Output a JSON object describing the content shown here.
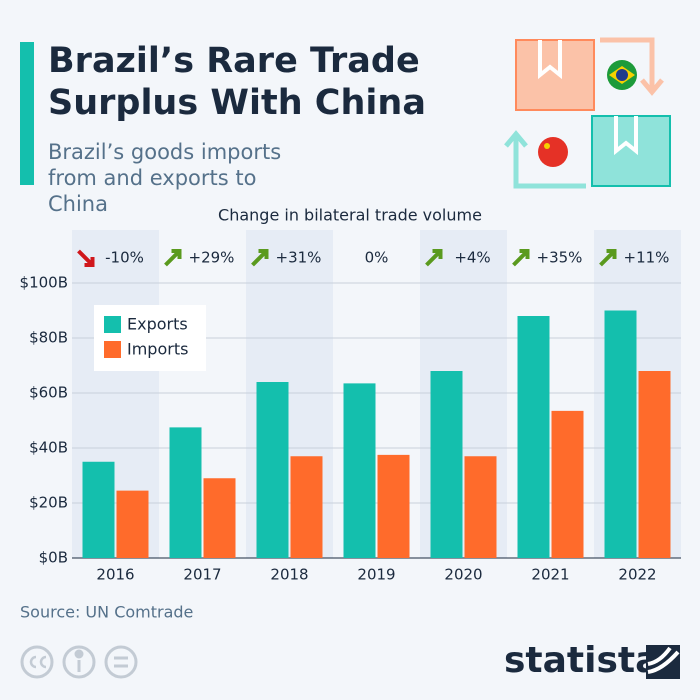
{
  "chart_data": {
    "type": "bar",
    "title": "Brazil’s Rare Trade Surplus With China",
    "subtitle": "Brazil’s goods imports from and exports to China",
    "categories": [
      "2016",
      "2017",
      "2018",
      "2019",
      "2020",
      "2021",
      "2022"
    ],
    "series": [
      {
        "name": "Exports",
        "color": "#14bfad",
        "values": [
          35,
          47.5,
          64,
          63.5,
          68,
          88,
          90
        ]
      },
      {
        "name": "Imports",
        "color": "#ff6b2b",
        "values": [
          24.5,
          29,
          37,
          37.5,
          37,
          53.5,
          68
        ]
      }
    ],
    "ylim": [
      0,
      100
    ],
    "yticks": [
      {
        "value": 0,
        "label": "$0B"
      },
      {
        "value": 20,
        "label": "$20B"
      },
      {
        "value": 40,
        "label": "$40B"
      },
      {
        "value": 60,
        "label": "$60B"
      },
      {
        "value": 80,
        "label": "$80B"
      },
      {
        "value": 100,
        "label": "$100B"
      }
    ],
    "grid": true,
    "legend": "top-left",
    "change": {
      "title": "Change in bilateral trade volume",
      "values": [
        -10,
        29,
        31,
        0,
        4,
        35,
        11
      ],
      "value_labels": [
        "-10%",
        "+29%",
        "+31%",
        "0%",
        "+4%",
        "+35%",
        "+11%"
      ]
    },
    "source": "Source: UN Comtrade",
    "brand": "statista"
  }
}
